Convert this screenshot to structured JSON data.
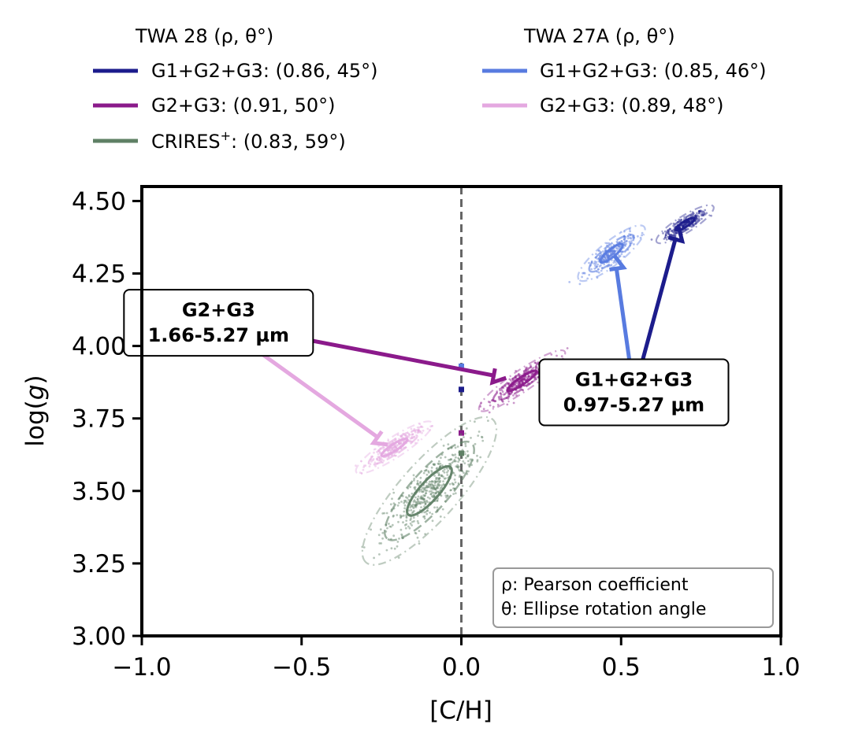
{
  "chart_data": {
    "type": "scatter",
    "xlabel": "[C/H]",
    "ylabel_prefix": "log(",
    "ylabel_var": "g",
    "ylabel_suffix": ")",
    "xlim": [
      -1.0,
      1.0
    ],
    "ylim": [
      3.0,
      4.55
    ],
    "x_ticks": [
      -1.0,
      -0.5,
      0.0,
      0.5,
      1.0
    ],
    "x_tick_labels": [
      "−1.0",
      "−0.5",
      "0.0",
      "0.5",
      "1.0"
    ],
    "y_ticks": [
      3.0,
      3.25,
      3.5,
      3.75,
      4.0,
      4.25,
      4.5
    ],
    "y_tick_labels": [
      "3.00",
      "3.25",
      "3.50",
      "3.75",
      "4.00",
      "4.25",
      "4.50"
    ],
    "grid": false,
    "reference_line_x": 0.0,
    "legend": {
      "placement": "above plot, two columns",
      "groups": [
        {
          "title": "TWA 28 (ρ, θ°)",
          "entries": [
            {
              "label": "G1+G2+G3: (0.86, 45°)",
              "color": "#1c1c8c"
            },
            {
              "label": "G2+G3: (0.91, 50°)",
              "color": "#8b1a8b"
            },
            {
              "label_base": "CRIRES",
              "label_sup": "+",
              "label_rest": ": (0.83, 59°)",
              "color": "#5f8065"
            }
          ]
        },
        {
          "title": "TWA 27A (ρ, θ°)",
          "entries": [
            {
              "label": "G1+G2+G3: (0.85, 46°)",
              "color": "#587be0"
            },
            {
              "label": "G2+G3: (0.89, 48°)",
              "color": "#e4a8e0"
            }
          ]
        }
      ]
    },
    "series": [
      {
        "name": "TWA 28 G1+G2+G3",
        "color": "#1c1c8c",
        "center": [
          0.7,
          4.42
        ],
        "rho": 0.86,
        "theta_deg": 45,
        "sigma": [
          0.03,
          0.022
        ],
        "n_points": 220,
        "zero_marker_y": 3.85
      },
      {
        "name": "TWA 28 G2+G3",
        "color": "#8b1a8b",
        "center": [
          0.19,
          3.88
        ],
        "rho": 0.91,
        "theta_deg": 50,
        "sigma": [
          0.045,
          0.035
        ],
        "n_points": 320,
        "zero_marker_y": 3.7
      },
      {
        "name": "TWA 28 CRIRES+",
        "color": "#5f8065",
        "center": [
          -0.1,
          3.5
        ],
        "rho": 0.83,
        "theta_deg": 59,
        "sigma": [
          0.07,
          0.085
        ],
        "n_points": 520,
        "zero_marker_y": 3.63
      },
      {
        "name": "TWA 27A G1+G2+G3",
        "color": "#587be0",
        "center": [
          0.47,
          4.32
        ],
        "rho": 0.85,
        "theta_deg": 46,
        "sigma": [
          0.035,
          0.032
        ],
        "n_points": 260,
        "zero_marker_y": 3.93
      },
      {
        "name": "TWA 27A G2+G3",
        "color": "#e4a8e0",
        "center": [
          -0.21,
          3.65
        ],
        "rho": 0.89,
        "theta_deg": 48,
        "sigma": [
          0.04,
          0.03
        ],
        "n_points": 260,
        "zero_marker_y": null
      }
    ],
    "annotations": [
      {
        "line1": "G2+G3",
        "line2": "1.66-5.27 µm",
        "anchor": [
          -0.76,
          4.08
        ],
        "arrows": [
          {
            "target": [
              0.14,
              3.89
            ],
            "color": "#8b1a8b"
          },
          {
            "target": [
              -0.23,
              3.66
            ],
            "color": "#e4a8e0"
          }
        ]
      },
      {
        "line1": "G1+G2+G3",
        "line2": "0.97-5.27 µm",
        "anchor": [
          0.54,
          3.84
        ],
        "arrows": [
          {
            "target": [
              0.68,
              4.41
            ],
            "color": "#1c1c8c"
          },
          {
            "target": [
              0.48,
              4.31
            ],
            "color": "#587be0"
          }
        ]
      }
    ],
    "note_box": {
      "lines": [
        "ρ: Pearson coefficient",
        "θ: Ellipse rotation angle"
      ],
      "placement": "bottom-right"
    }
  }
}
